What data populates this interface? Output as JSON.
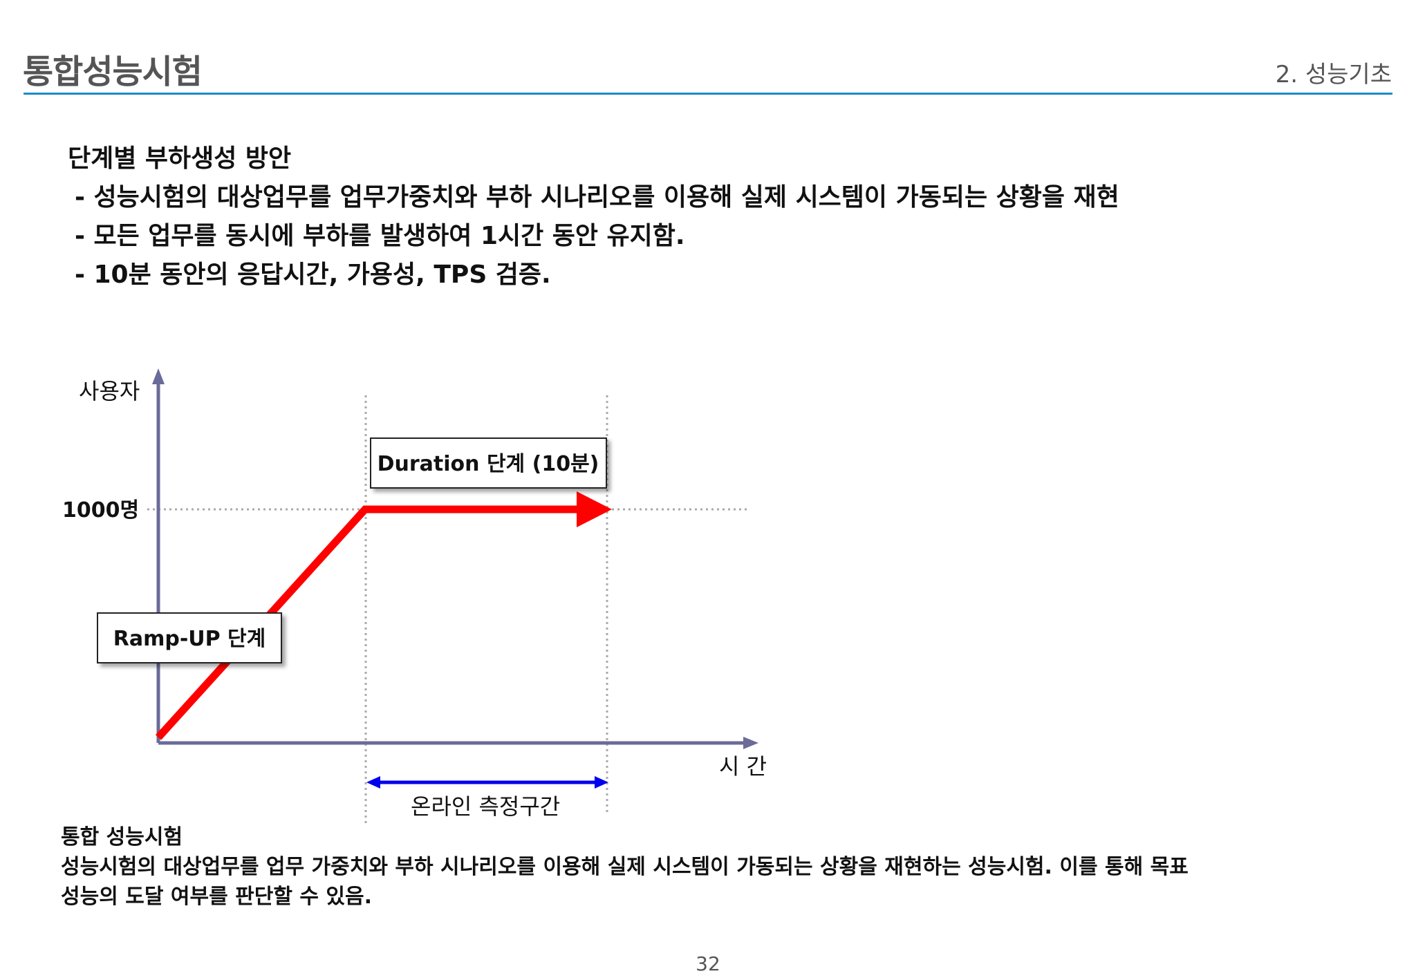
{
  "header": {
    "title": "통합성능시험",
    "section": "2. 성능기초",
    "rule_color": "#1b8bc6"
  },
  "body": {
    "heading": "단계별 부하생성 방안",
    "bullets": [
      "- 성능시험의 대상업무를 업무가중치와 부하 시나리오를 이용해 실제 시스템이 가동되는 상황을 재현",
      "- 모든 업무를 동시에 부하를 발생하여 1시간 동안 유지함.",
      "- 10분 동안의 응답시간, 가용성, TPS 검증."
    ]
  },
  "diagram": {
    "y_axis_label": "사용자",
    "x_axis_label": "시 간",
    "level_label": "1000명",
    "rampup_label": "Ramp-UP 단계",
    "duration_label": "Duration 단계 (10분)",
    "measure_label": "온라인 측정구간",
    "colors": {
      "axis": "#6b6b9a",
      "load_line": "#ff0000",
      "measure_arrow": "#0000ee",
      "guide": "#aaaaaa"
    }
  },
  "note": {
    "title": "통합 성능시험",
    "line1": "성능시험의 대상업무를 업무 가중치와 부하 시나리오를 이용해 실제 시스템이 가동되는 상황을 재현하는 성능시험. 이를 통해 목표",
    "line2": "성능의 도달 여부를 판단할 수 있음."
  },
  "page_number": "32"
}
